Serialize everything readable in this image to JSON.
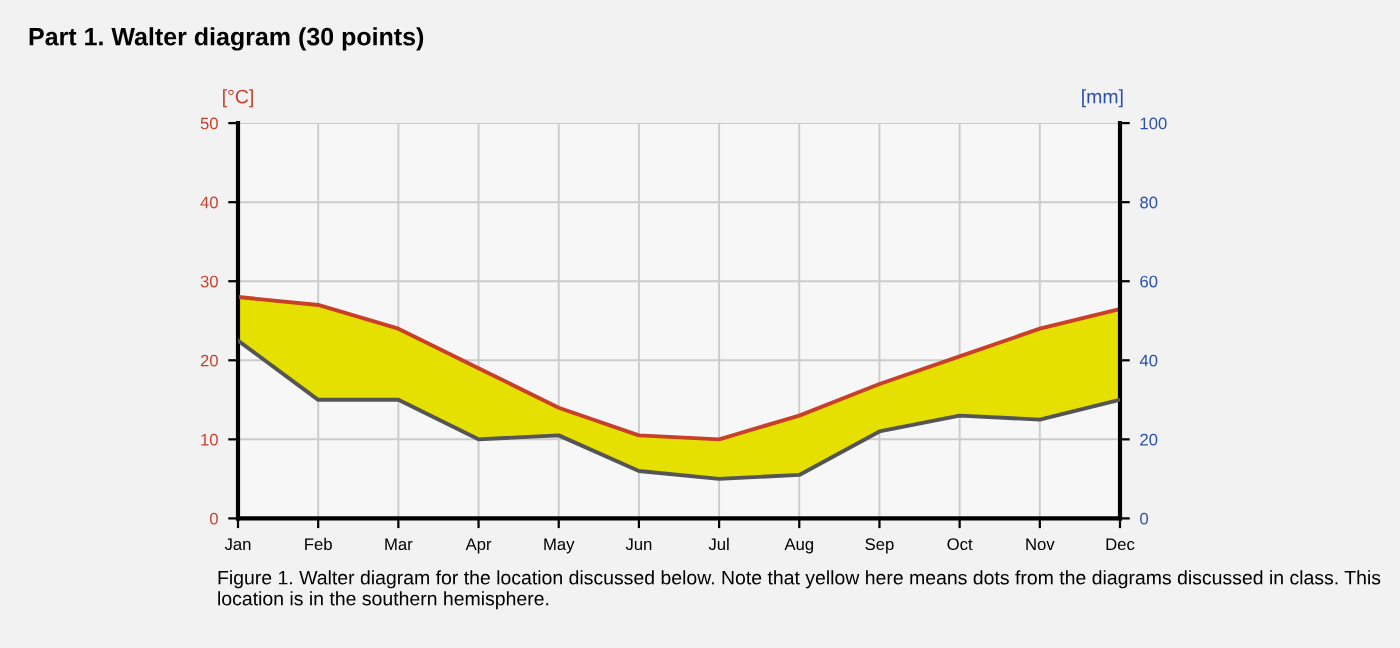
{
  "chart_data": {
    "type": "line",
    "title": "Part 1. Walter diagram (30 points)",
    "ylabel": "[°C]",
    "y2label": "[mm]",
    "categories": [
      "Jan",
      "Feb",
      "Mar",
      "Apr",
      "May",
      "Jun",
      "Jul",
      "Aug",
      "Sep",
      "Oct",
      "Nov",
      "Dec"
    ],
    "series": [
      {
        "color": "#c8402a",
        "values": [
          28,
          27,
          24,
          19,
          14,
          10.5,
          10,
          13,
          17,
          20.5,
          24,
          26.5
        ]
      },
      {
        "color": "#555555",
        "axis": "y2",
        "values": [
          45,
          30,
          30,
          20,
          21,
          12,
          10,
          11,
          22,
          26,
          25,
          30
        ]
      }
    ],
    "ylim": [
      0,
      50
    ],
    "yticks": [
      0,
      10,
      20,
      30,
      40,
      50
    ],
    "y2lim": [
      0,
      100
    ],
    "y2ticks": [
      0,
      20,
      40,
      60,
      80,
      100
    ],
    "grid": true,
    "legend": false,
    "marker": "none",
    "line_style": "solid",
    "annotations": [
      "Figure 1. Walter diagram for the location discussed below. Note that yellow here means dots from the diagrams discussed in class. This location is in the southern hemisphere."
    ]
  }
}
